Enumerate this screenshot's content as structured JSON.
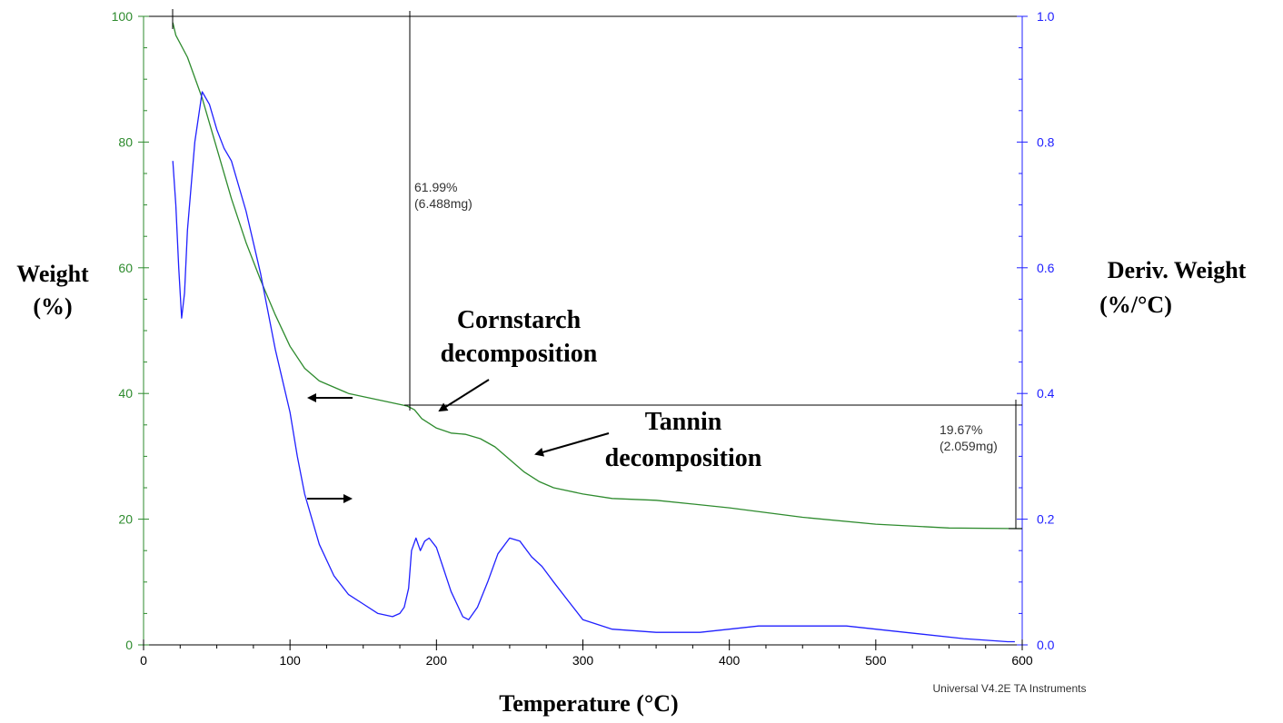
{
  "chart_data": {
    "type": "line",
    "x_axis": {
      "label": "Temperature (°C)",
      "range": [
        0,
        600
      ],
      "ticks": [
        "0",
        "100",
        "200",
        "300",
        "400",
        "500",
        "600"
      ]
    },
    "y_axis_left": {
      "label_line1": "Weight",
      "label_line2": "(%)",
      "range": [
        0,
        100
      ],
      "ticks": [
        "0",
        "20",
        "40",
        "60",
        "80",
        "100"
      ],
      "color": "#2e8b2e"
    },
    "y_axis_right": {
      "label_line1": "Deriv. Weight",
      "label_line2": "(%/°C)",
      "range": [
        0.0,
        1.0
      ],
      "ticks": [
        "0.0",
        "0.2",
        "0.4",
        "0.6",
        "0.8",
        "1.0"
      ],
      "color": "#2020ff"
    },
    "series": [
      {
        "axis": "left",
        "color": "#2e8b2e",
        "x": [
          20,
          22,
          30,
          40,
          50,
          60,
          70,
          80,
          90,
          100,
          110,
          120,
          140,
          160,
          180,
          185,
          190,
          200,
          210,
          220,
          230,
          240,
          250,
          260,
          270,
          280,
          300,
          320,
          350,
          400,
          450,
          500,
          550,
          600
        ],
        "y": [
          99,
          97,
          93.5,
          87,
          79,
          71,
          64,
          58,
          52.5,
          47.5,
          44,
          42,
          40,
          39,
          38,
          37.4,
          36,
          34.5,
          33.7,
          33.5,
          32.8,
          31.5,
          29.5,
          27.5,
          26,
          25,
          24,
          23.3,
          23,
          21.8,
          20.3,
          19.2,
          18.6,
          18.5
        ]
      },
      {
        "axis": "right",
        "color": "#2020ff",
        "x": [
          20,
          22,
          24,
          26,
          28,
          30,
          35,
          40,
          45,
          50,
          55,
          60,
          70,
          80,
          90,
          100,
          105,
          110,
          120,
          130,
          140,
          150,
          160,
          170,
          175,
          178,
          181,
          183,
          186,
          189,
          192,
          195,
          200,
          205,
          210,
          215,
          218,
          222,
          228,
          235,
          242,
          250,
          257,
          265,
          272,
          280,
          290,
          300,
          320,
          350,
          380,
          400,
          420,
          450,
          480,
          500,
          520,
          560,
          590,
          595
        ],
        "y": [
          0.77,
          0.7,
          0.6,
          0.52,
          0.56,
          0.66,
          0.8,
          0.88,
          0.86,
          0.82,
          0.79,
          0.77,
          0.69,
          0.59,
          0.47,
          0.37,
          0.3,
          0.24,
          0.16,
          0.11,
          0.08,
          0.065,
          0.05,
          0.045,
          0.05,
          0.06,
          0.09,
          0.15,
          0.17,
          0.15,
          0.165,
          0.17,
          0.155,
          0.12,
          0.085,
          0.06,
          0.045,
          0.04,
          0.06,
          0.1,
          0.145,
          0.17,
          0.165,
          0.14,
          0.125,
          0.1,
          0.07,
          0.04,
          0.025,
          0.02,
          0.02,
          0.025,
          0.03,
          0.03,
          0.03,
          0.025,
          0.02,
          0.01,
          0.005,
          0.005
        ]
      }
    ],
    "annotations": {
      "step1_pct": "61.99%",
      "step1_mg": "(6.488mg)",
      "step2_pct": "19.67%",
      "step2_mg": "(2.059mg)",
      "cornstarch_line1": "Cornstarch",
      "cornstarch_line2": "decomposition",
      "tannin_line1": "Tannin",
      "tannin_line2": "decomposition"
    },
    "credit": "Universal V4.2E TA Instruments"
  }
}
